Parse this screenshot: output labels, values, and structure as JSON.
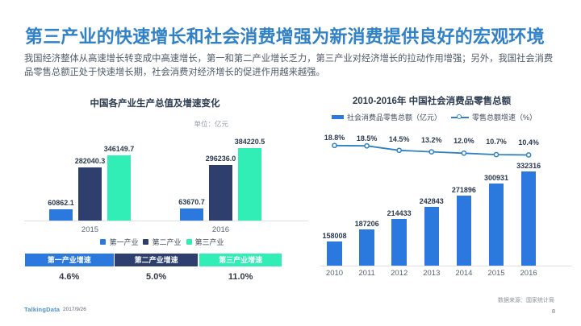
{
  "slide": {
    "title": "第三产业的快速增长和社会消费增强为新消费提供良好的宏观环境",
    "body": "我国经济整体从高速增长转变成中高速增长，第一和第二产业增长乏力，第三产业对经济增长的拉动作用增强；另外，我国社会消费\n品零售总额正处于快速增长期，社会消费对经济增长的促进作用越来越强。"
  },
  "footer": {
    "logo": "TalkingData",
    "date": "2017/9/26",
    "source_note": "数据来源：国家统计局",
    "page_number": "8"
  },
  "colors": {
    "title_blue": "#3181c7",
    "bar_blue": "#2b78de",
    "navy": "#2e3f6d",
    "mint": "#31eeb6",
    "line_blue": "#2f81c4",
    "label_dark": "#2b3a4e",
    "axis_gray": "#dce1e6"
  },
  "chart_data": [
    {
      "type": "bar",
      "title": "中国各产业生产总值及增速变化",
      "unit_label": "单位：亿元",
      "categories": [
        "2015",
        "2016"
      ],
      "series": [
        {
          "name": "第一产业",
          "color": "#2b78de",
          "values": [
            60862.1,
            63670.7
          ]
        },
        {
          "name": "第二产业",
          "color": "#2e3f6d",
          "values": [
            282040.3,
            296236.0
          ]
        },
        {
          "name": "第三产业",
          "color": "#31eeb6",
          "values": [
            346149.7,
            384220.5
          ]
        }
      ],
      "ylim": [
        0,
        384220.5
      ],
      "legend_position": "bottom",
      "grid": false,
      "growth_table": {
        "headers": [
          {
            "label": "第一产业增速",
            "color": "#2b78de"
          },
          {
            "label": "第二产业增速",
            "color": "#2e3f6d"
          },
          {
            "label": "第三产业增速",
            "color": "#31eeb6"
          }
        ],
        "values": [
          "4.6%",
          "5.0%",
          "11.0%"
        ]
      }
    },
    {
      "type": "bar+line",
      "title": "2010-2016年 中国社会消费品零售总额",
      "categories": [
        "2010",
        "2011",
        "2012",
        "2013",
        "2014",
        "2015",
        "2016"
      ],
      "bar_series": {
        "name": "社会消费品零售总额（亿元）",
        "color": "#2b78de",
        "values": [
          158008,
          187206,
          214433,
          242843,
          271896,
          300931,
          332316
        ]
      },
      "line_series": {
        "name": "零售总额增速（%）",
        "color": "#2f81c4",
        "values": [
          18.8,
          18.5,
          14.5,
          13.2,
          12.0,
          10.7,
          10.4
        ]
      },
      "bar_ylim": [
        97000,
        340000
      ],
      "legend_position": "top",
      "grid": false
    }
  ]
}
